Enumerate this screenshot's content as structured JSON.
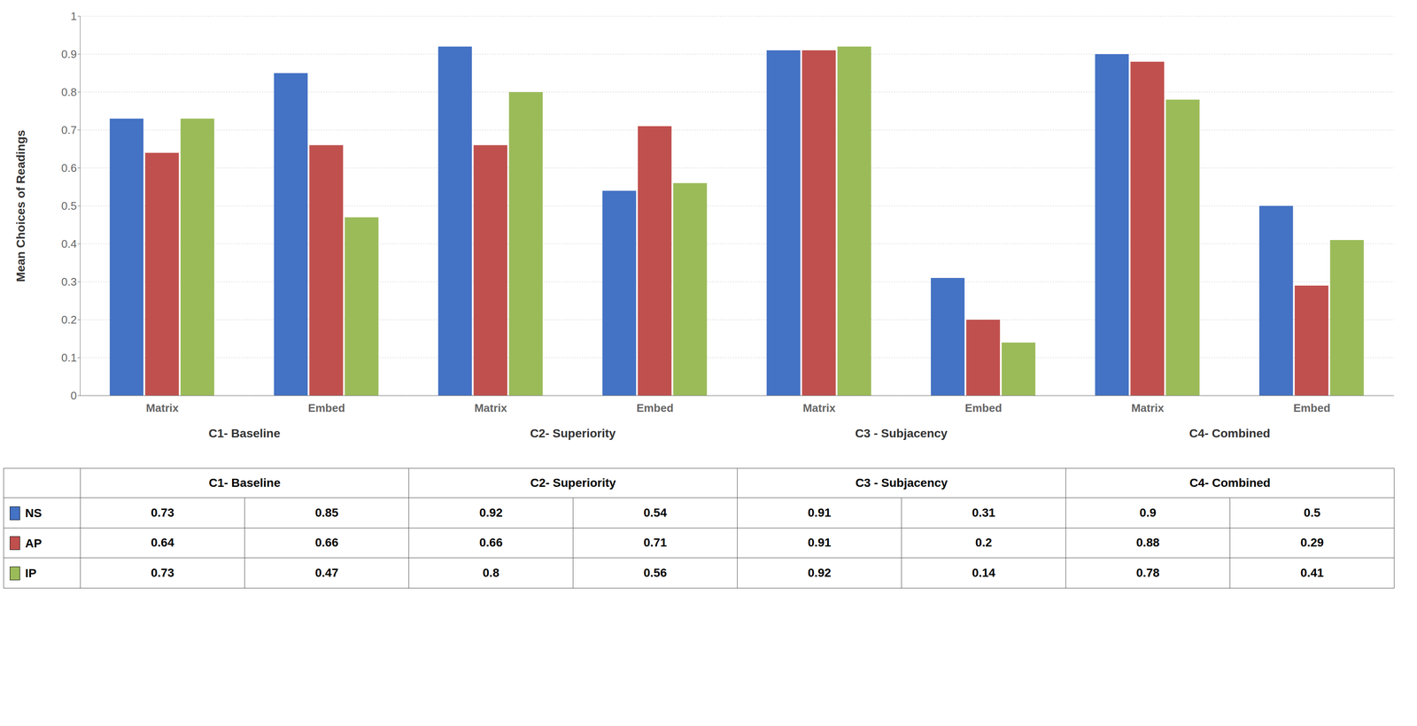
{
  "chart_data": {
    "type": "bar",
    "ylabel": "Mean Choices of Readings",
    "categories": [
      "Matrix",
      "Embed",
      "Matrix",
      "Embed",
      "Matrix",
      "Embed",
      "Matrix",
      "Embed"
    ],
    "annotations": [
      "C1- Baseline",
      "C2- Superiority",
      "C3 - Subjacency",
      "C4- Combined"
    ],
    "series": [
      {
        "name": "NS",
        "color": "#4472c4",
        "values": [
          0.73,
          0.85,
          0.92,
          0.54,
          0.91,
          0.31,
          0.9,
          0.5
        ]
      },
      {
        "name": "AP",
        "color": "#c0504d",
        "values": [
          0.64,
          0.66,
          0.66,
          0.71,
          0.91,
          0.2,
          0.88,
          0.29
        ]
      },
      {
        "name": "IP",
        "color": "#9bbb59",
        "values": [
          0.73,
          0.47,
          0.8,
          0.56,
          0.92,
          0.14,
          0.78,
          0.41
        ]
      }
    ],
    "ylim": [
      0,
      1.0
    ],
    "yticks": [
      0,
      0.1,
      0.2,
      0.3,
      0.4,
      0.5,
      0.6,
      0.7,
      0.8,
      0.9,
      1
    ],
    "grid": true
  }
}
